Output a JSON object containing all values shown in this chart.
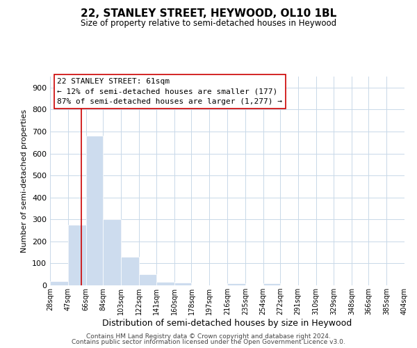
{
  "title": "22, STANLEY STREET, HEYWOOD, OL10 1BL",
  "subtitle": "Size of property relative to semi-detached houses in Heywood",
  "xlabel": "Distribution of semi-detached houses by size in Heywood",
  "ylabel": "Number of semi-detached properties",
  "bin_edges": [
    28,
    47,
    66,
    84,
    103,
    122,
    141,
    160,
    178,
    197,
    216,
    235,
    254,
    272,
    291,
    310,
    329,
    348,
    366,
    385,
    404
  ],
  "bin_labels": [
    "28sqm",
    "47sqm",
    "66sqm",
    "84sqm",
    "103sqm",
    "122sqm",
    "141sqm",
    "160sqm",
    "178sqm",
    "197sqm",
    "216sqm",
    "235sqm",
    "254sqm",
    "272sqm",
    "291sqm",
    "310sqm",
    "329sqm",
    "348sqm",
    "366sqm",
    "385sqm",
    "404sqm"
  ],
  "bar_heights": [
    18,
    275,
    680,
    300,
    130,
    52,
    15,
    13,
    0,
    0,
    10,
    0,
    8,
    0,
    0,
    0,
    0,
    0,
    0,
    0
  ],
  "bar_color": "#cddcee",
  "bar_edge_color": "#ffffff",
  "vline_color": "#cc0000",
  "vline_x": 61,
  "ylim": [
    0,
    950
  ],
  "yticks": [
    0,
    100,
    200,
    300,
    400,
    500,
    600,
    700,
    800,
    900
  ],
  "ann_line1": "22 STANLEY STREET: 61sqm",
  "ann_line2": "← 12% of semi-detached houses are smaller (177)",
  "ann_line3": "87% of semi-detached houses are larger (1,277) →",
  "footer_line1": "Contains HM Land Registry data © Crown copyright and database right 2024.",
  "footer_line2": "Contains public sector information licensed under the Open Government Licence v3.0.",
  "background_color": "#ffffff",
  "grid_color": "#c8d8e8"
}
